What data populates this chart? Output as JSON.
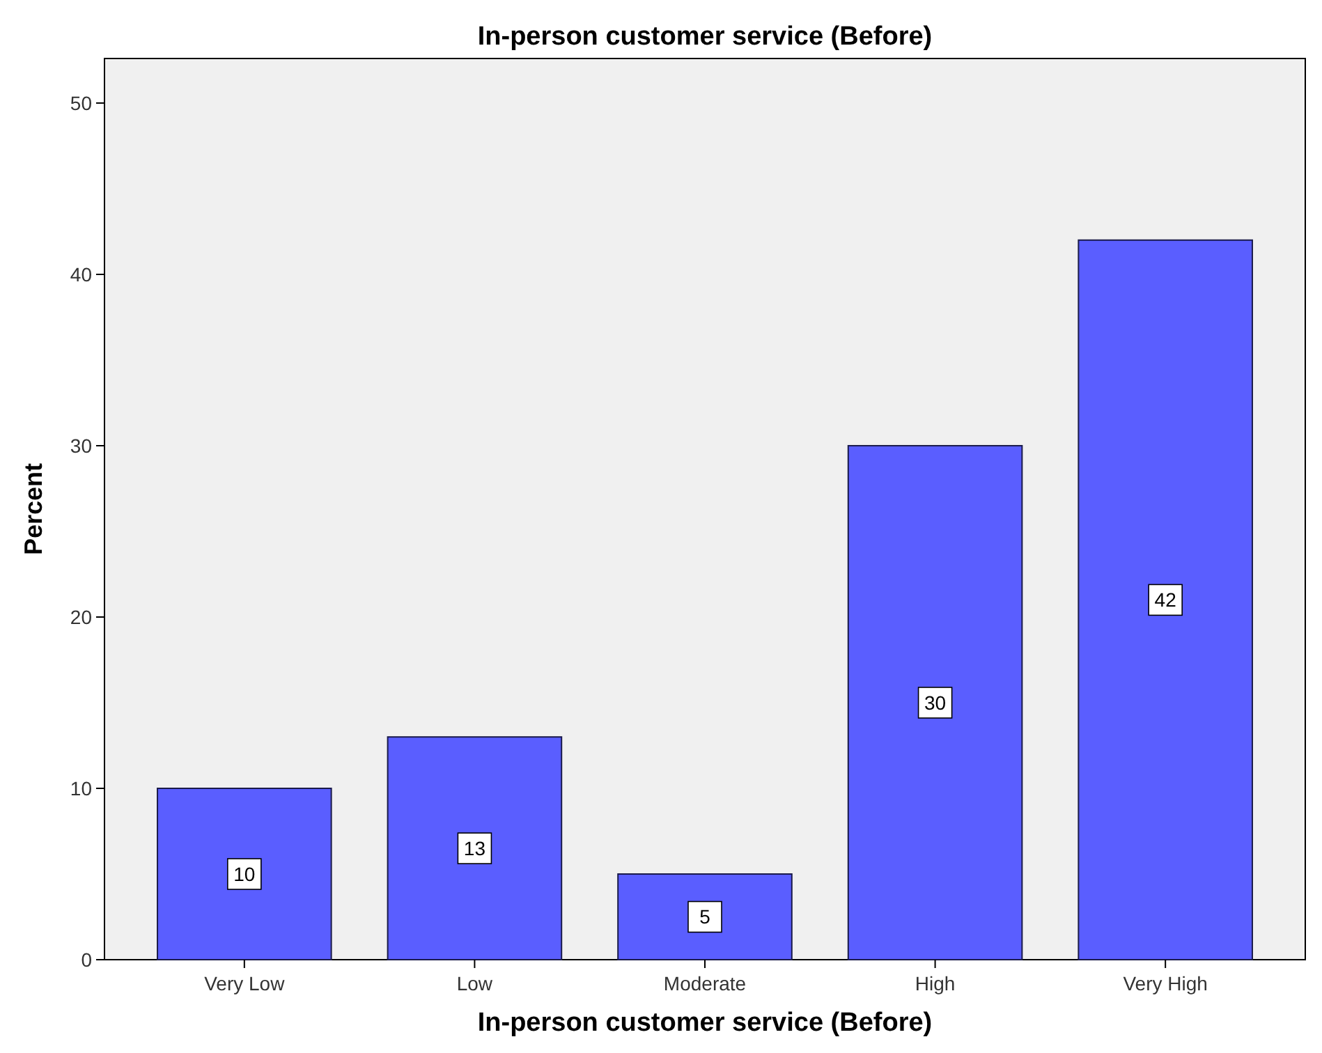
{
  "chart_data": {
    "type": "bar",
    "title": "In-person customer service (Before)",
    "xlabel": "In-person customer service (Before)",
    "ylabel": "Percent",
    "categories": [
      "Very Low",
      "Low",
      "Moderate",
      "High",
      "Very High"
    ],
    "values": [
      10,
      13,
      5,
      30,
      42
    ],
    "color": "#5a5eff",
    "ylim": [
      0,
      52.6
    ],
    "yticks": [
      0,
      10,
      20,
      30,
      40,
      50
    ],
    "grid": false,
    "data_labels": true
  }
}
